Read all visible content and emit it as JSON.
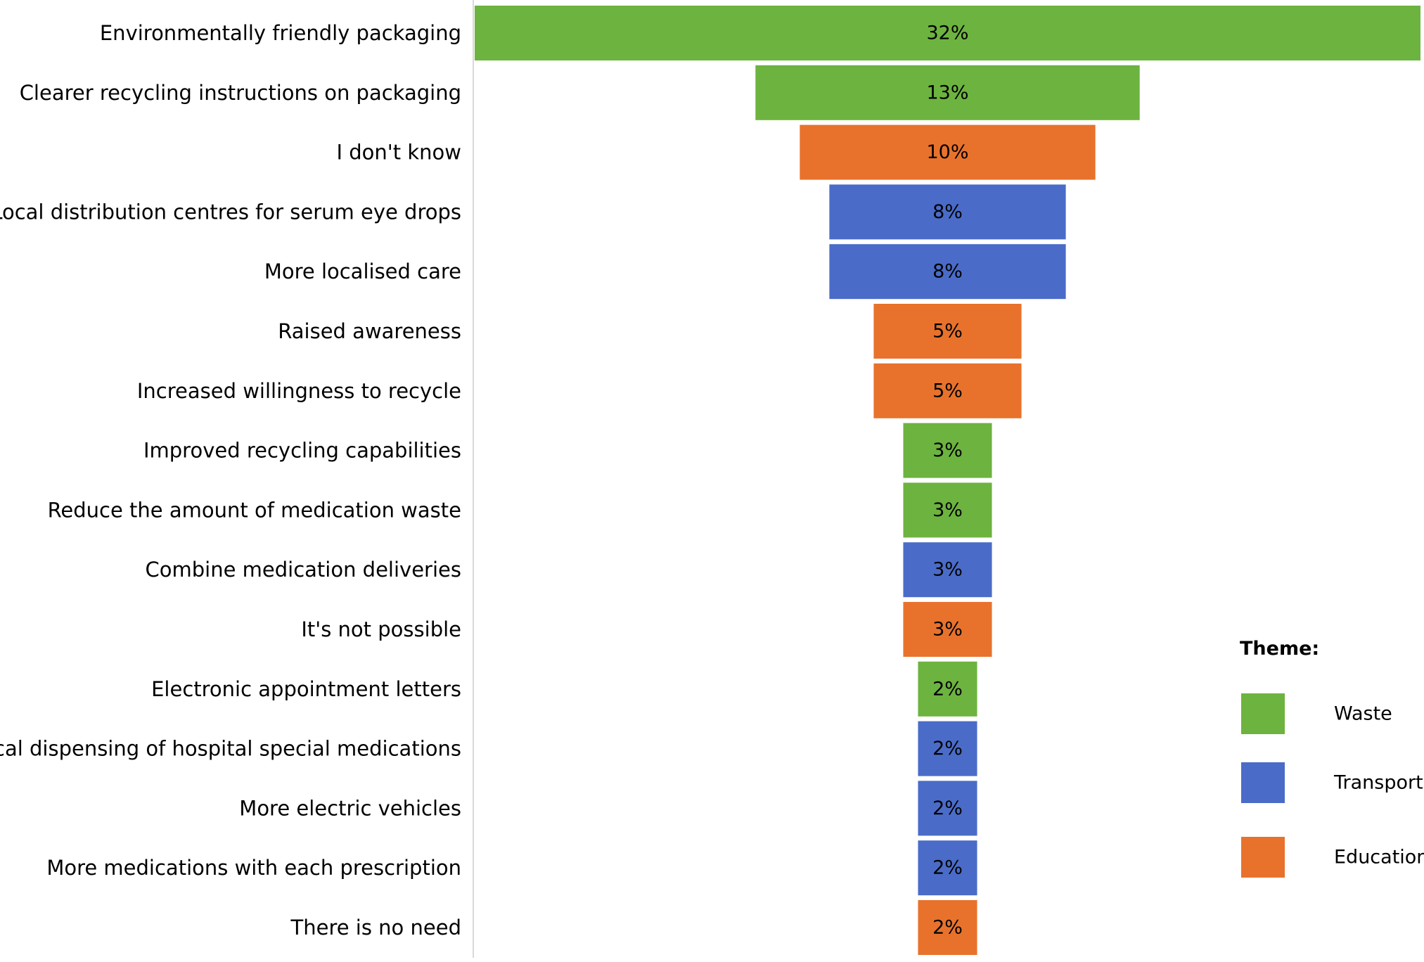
{
  "chart_data": {
    "type": "bar",
    "orientation": "horizontal-funnel",
    "categories": [
      "Environmentally friendly packaging",
      "Clearer recycling instructions on packaging",
      "I don't know",
      "Local distribution centres for serum eye drops",
      "More localised care",
      "Raised awareness",
      "Increased willingness to recycle",
      "Improved recycling capabilities",
      "Reduce the amount of medication waste",
      "Combine medication deliveries",
      "It's not possible",
      "Electronic appointment letters",
      "Local dispensing of hospital special medications",
      "More electric vehicles",
      "More medications with each prescription",
      "There is no need"
    ],
    "values": [
      32,
      13,
      10,
      8,
      8,
      5,
      5,
      3,
      3,
      3,
      3,
      2,
      2,
      2,
      2,
      2
    ],
    "value_labels": [
      "32%",
      "13%",
      "10%",
      "8%",
      "8%",
      "5%",
      "5%",
      "3%",
      "3%",
      "3%",
      "3%",
      "2%",
      "2%",
      "2%",
      "2%",
      "2%"
    ],
    "themes": [
      "Waste",
      "Waste",
      "Education",
      "Transport",
      "Transport",
      "Education",
      "Education",
      "Waste",
      "Waste",
      "Transport",
      "Education",
      "Waste",
      "Transport",
      "Transport",
      "Transport",
      "Education"
    ],
    "legend": {
      "title": "Theme:",
      "placement": "bottom-right",
      "items": [
        {
          "name": "Waste",
          "color": "#6DB33F"
        },
        {
          "name": "Transport",
          "color": "#4A6CC8"
        },
        {
          "name": "Education",
          "color": "#E8722C"
        }
      ]
    },
    "xlim": [
      0,
      32
    ],
    "grid": false
  }
}
